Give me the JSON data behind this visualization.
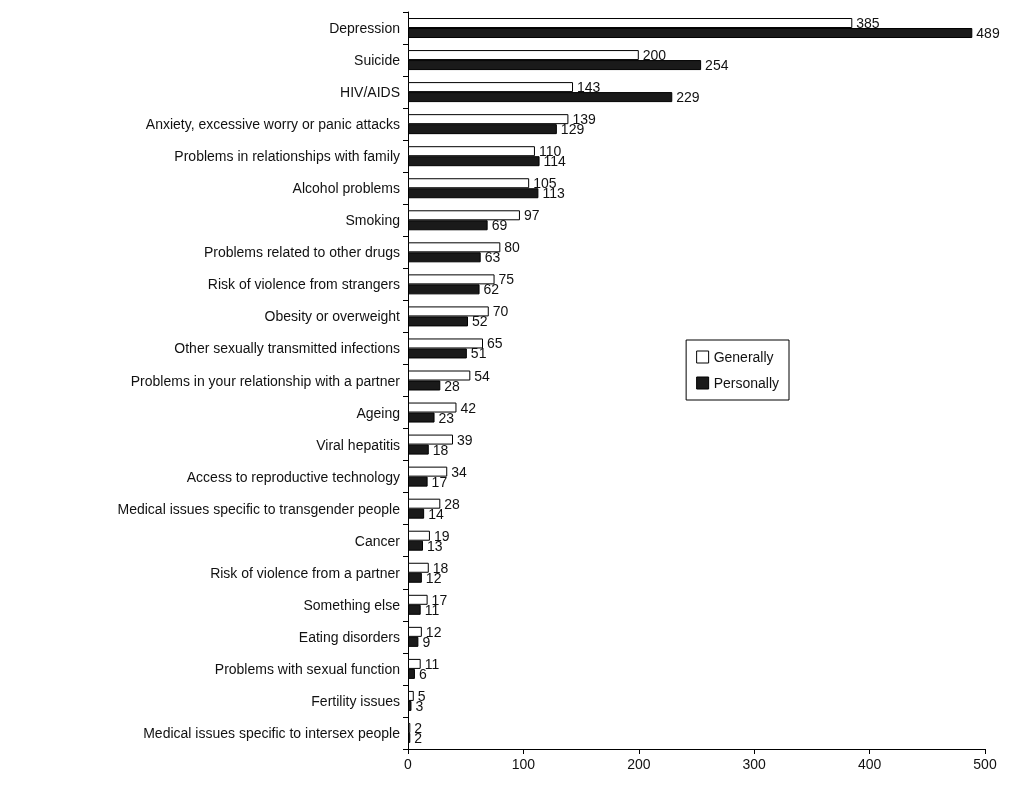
{
  "chart_data": {
    "type": "bar",
    "orientation": "horizontal",
    "categories": [
      "Depression",
      "Suicide",
      "HIV/AIDS",
      "Anxiety, excessive worry or panic attacks",
      "Problems in relationships with family",
      "Alcohol problems",
      "Smoking",
      "Problems related to other drugs",
      "Risk of violence from strangers",
      "Obesity or overweight",
      "Other sexually transmitted infections",
      "Problems in your relationship with a partner",
      "Ageing",
      "Viral hepatitis",
      "Access to reproductive technology",
      "Medical issues specific to transgender people",
      "Cancer",
      "Risk of violence from a partner",
      "Something else",
      "Eating disorders",
      "Problems with sexual function",
      "Fertility issues",
      "Medical issues specific to intersex people"
    ],
    "series": [
      {
        "name": "Generally",
        "color": "#ffffff",
        "values": [
          385,
          200,
          143,
          139,
          110,
          105,
          97,
          80,
          75,
          70,
          65,
          54,
          42,
          39,
          34,
          28,
          19,
          18,
          17,
          12,
          11,
          5,
          2
        ]
      },
      {
        "name": "Personally",
        "color": "#1a1a1a",
        "values": [
          489,
          254,
          229,
          129,
          114,
          113,
          69,
          63,
          62,
          52,
          51,
          28,
          23,
          18,
          17,
          14,
          13,
          12,
          11,
          9,
          6,
          3,
          2
        ]
      }
    ],
    "xlim": [
      0,
      500
    ],
    "xticks": [
      0,
      100,
      200,
      300,
      400,
      500
    ],
    "grid": false,
    "legend": "right",
    "data_labels": true
  }
}
